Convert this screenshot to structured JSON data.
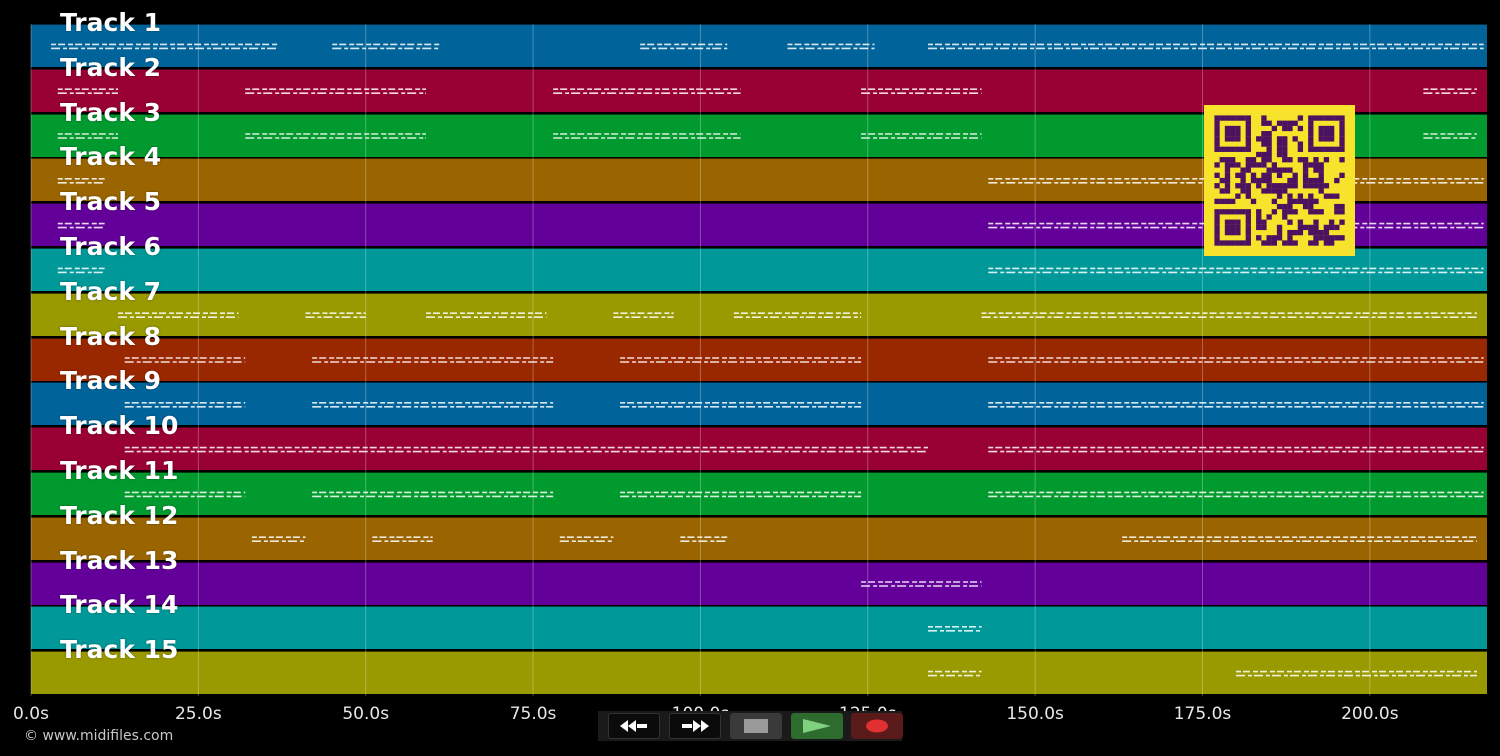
{
  "tracks": [
    {
      "label": "Track 1",
      "color": "#00649a"
    },
    {
      "label": "Track 2",
      "color": "#990033"
    },
    {
      "label": "Track 3",
      "color": "#009a2e"
    },
    {
      "label": "Track 4",
      "color": "#9a6500"
    },
    {
      "label": "Track 5",
      "color": "#630099"
    },
    {
      "label": "Track 6",
      "color": "#009898"
    },
    {
      "label": "Track 7",
      "color": "#999900"
    },
    {
      "label": "Track 8",
      "color": "#992800"
    },
    {
      "label": "Track 9",
      "color": "#00649a"
    },
    {
      "label": "Track 10",
      "color": "#990033"
    },
    {
      "label": "Track 11",
      "color": "#009a2e"
    },
    {
      "label": "Track 12",
      "color": "#9a6500"
    },
    {
      "label": "Track 13",
      "color": "#630099"
    },
    {
      "label": "Track 14",
      "color": "#009898"
    },
    {
      "label": "Track 15",
      "color": "#999900"
    }
  ],
  "timeline": {
    "ticks": [
      {
        "label": "0.0s",
        "seconds": 0
      },
      {
        "label": "25.0s",
        "seconds": 25
      },
      {
        "label": "50.0s",
        "seconds": 50
      },
      {
        "label": "75.0s",
        "seconds": 75
      },
      {
        "label": "100.0s",
        "seconds": 100
      },
      {
        "label": "125.0s",
        "seconds": 125
      },
      {
        "label": "150.0s",
        "seconds": 150
      },
      {
        "label": "175.0s",
        "seconds": 175
      },
      {
        "label": "200.0s",
        "seconds": 200
      }
    ],
    "max_seconds": 217.5
  },
  "copyright": "© www.midifiles.com",
  "controls": [
    {
      "name": "rewind-button",
      "icon": "rewind-icon"
    },
    {
      "name": "fast-forward-button",
      "icon": "fast-forward-icon"
    },
    {
      "name": "stop-button",
      "icon": "stop-icon"
    },
    {
      "name": "play-button",
      "icon": "play-icon"
    },
    {
      "name": "record-button",
      "icon": "record-icon"
    }
  ],
  "note_segments": [
    [
      [
        3,
        37
      ],
      [
        45,
        61
      ],
      [
        91,
        104
      ],
      [
        113,
        126
      ],
      [
        134,
        217
      ]
    ],
    [
      [
        4,
        13
      ],
      [
        32,
        59
      ],
      [
        78,
        106
      ],
      [
        124,
        142
      ],
      [
        208,
        216
      ]
    ],
    [
      [
        4,
        13
      ],
      [
        32,
        59
      ],
      [
        78,
        106
      ],
      [
        124,
        142
      ],
      [
        208,
        216
      ]
    ],
    [
      [
        4,
        11
      ],
      [
        143,
        217
      ]
    ],
    [
      [
        4,
        11
      ],
      [
        143,
        217
      ]
    ],
    [
      [
        4,
        11
      ],
      [
        143,
        217
      ]
    ],
    [
      [
        13,
        31
      ],
      [
        41,
        50
      ],
      [
        59,
        77
      ],
      [
        87,
        96
      ],
      [
        105,
        124
      ],
      [
        142,
        216
      ]
    ],
    [
      [
        14,
        32
      ],
      [
        42,
        78
      ],
      [
        88,
        124
      ],
      [
        143,
        217
      ]
    ],
    [
      [
        14,
        32
      ],
      [
        42,
        78
      ],
      [
        88,
        124
      ],
      [
        143,
        217
      ]
    ],
    [
      [
        14,
        134
      ],
      [
        143,
        217
      ]
    ],
    [
      [
        14,
        32
      ],
      [
        42,
        78
      ],
      [
        88,
        124
      ],
      [
        143,
        217
      ]
    ],
    [
      [
        33,
        41
      ],
      [
        51,
        60
      ],
      [
        79,
        87
      ],
      [
        97,
        104
      ],
      [
        163,
        216
      ]
    ],
    [
      [
        124,
        142
      ]
    ],
    [
      [
        134,
        142
      ]
    ],
    [
      [
        134,
        142
      ],
      [
        180,
        216
      ]
    ]
  ]
}
